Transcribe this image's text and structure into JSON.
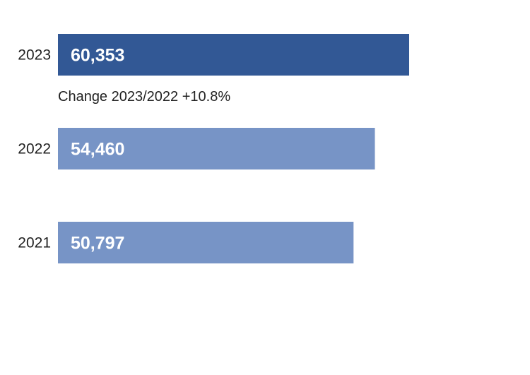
{
  "chart_data": {
    "type": "bar",
    "orientation": "horizontal",
    "categories": [
      "2023",
      "2022",
      "2021"
    ],
    "values": [
      60353,
      54460,
      50797
    ],
    "value_labels": [
      "60,353",
      "54,460",
      "50,797"
    ],
    "bar_colors": [
      "#325895",
      "#7794c6",
      "#7794c6"
    ],
    "annotation": "Change 2023/2022 +10.8%",
    "grid": false,
    "legend": "none"
  }
}
